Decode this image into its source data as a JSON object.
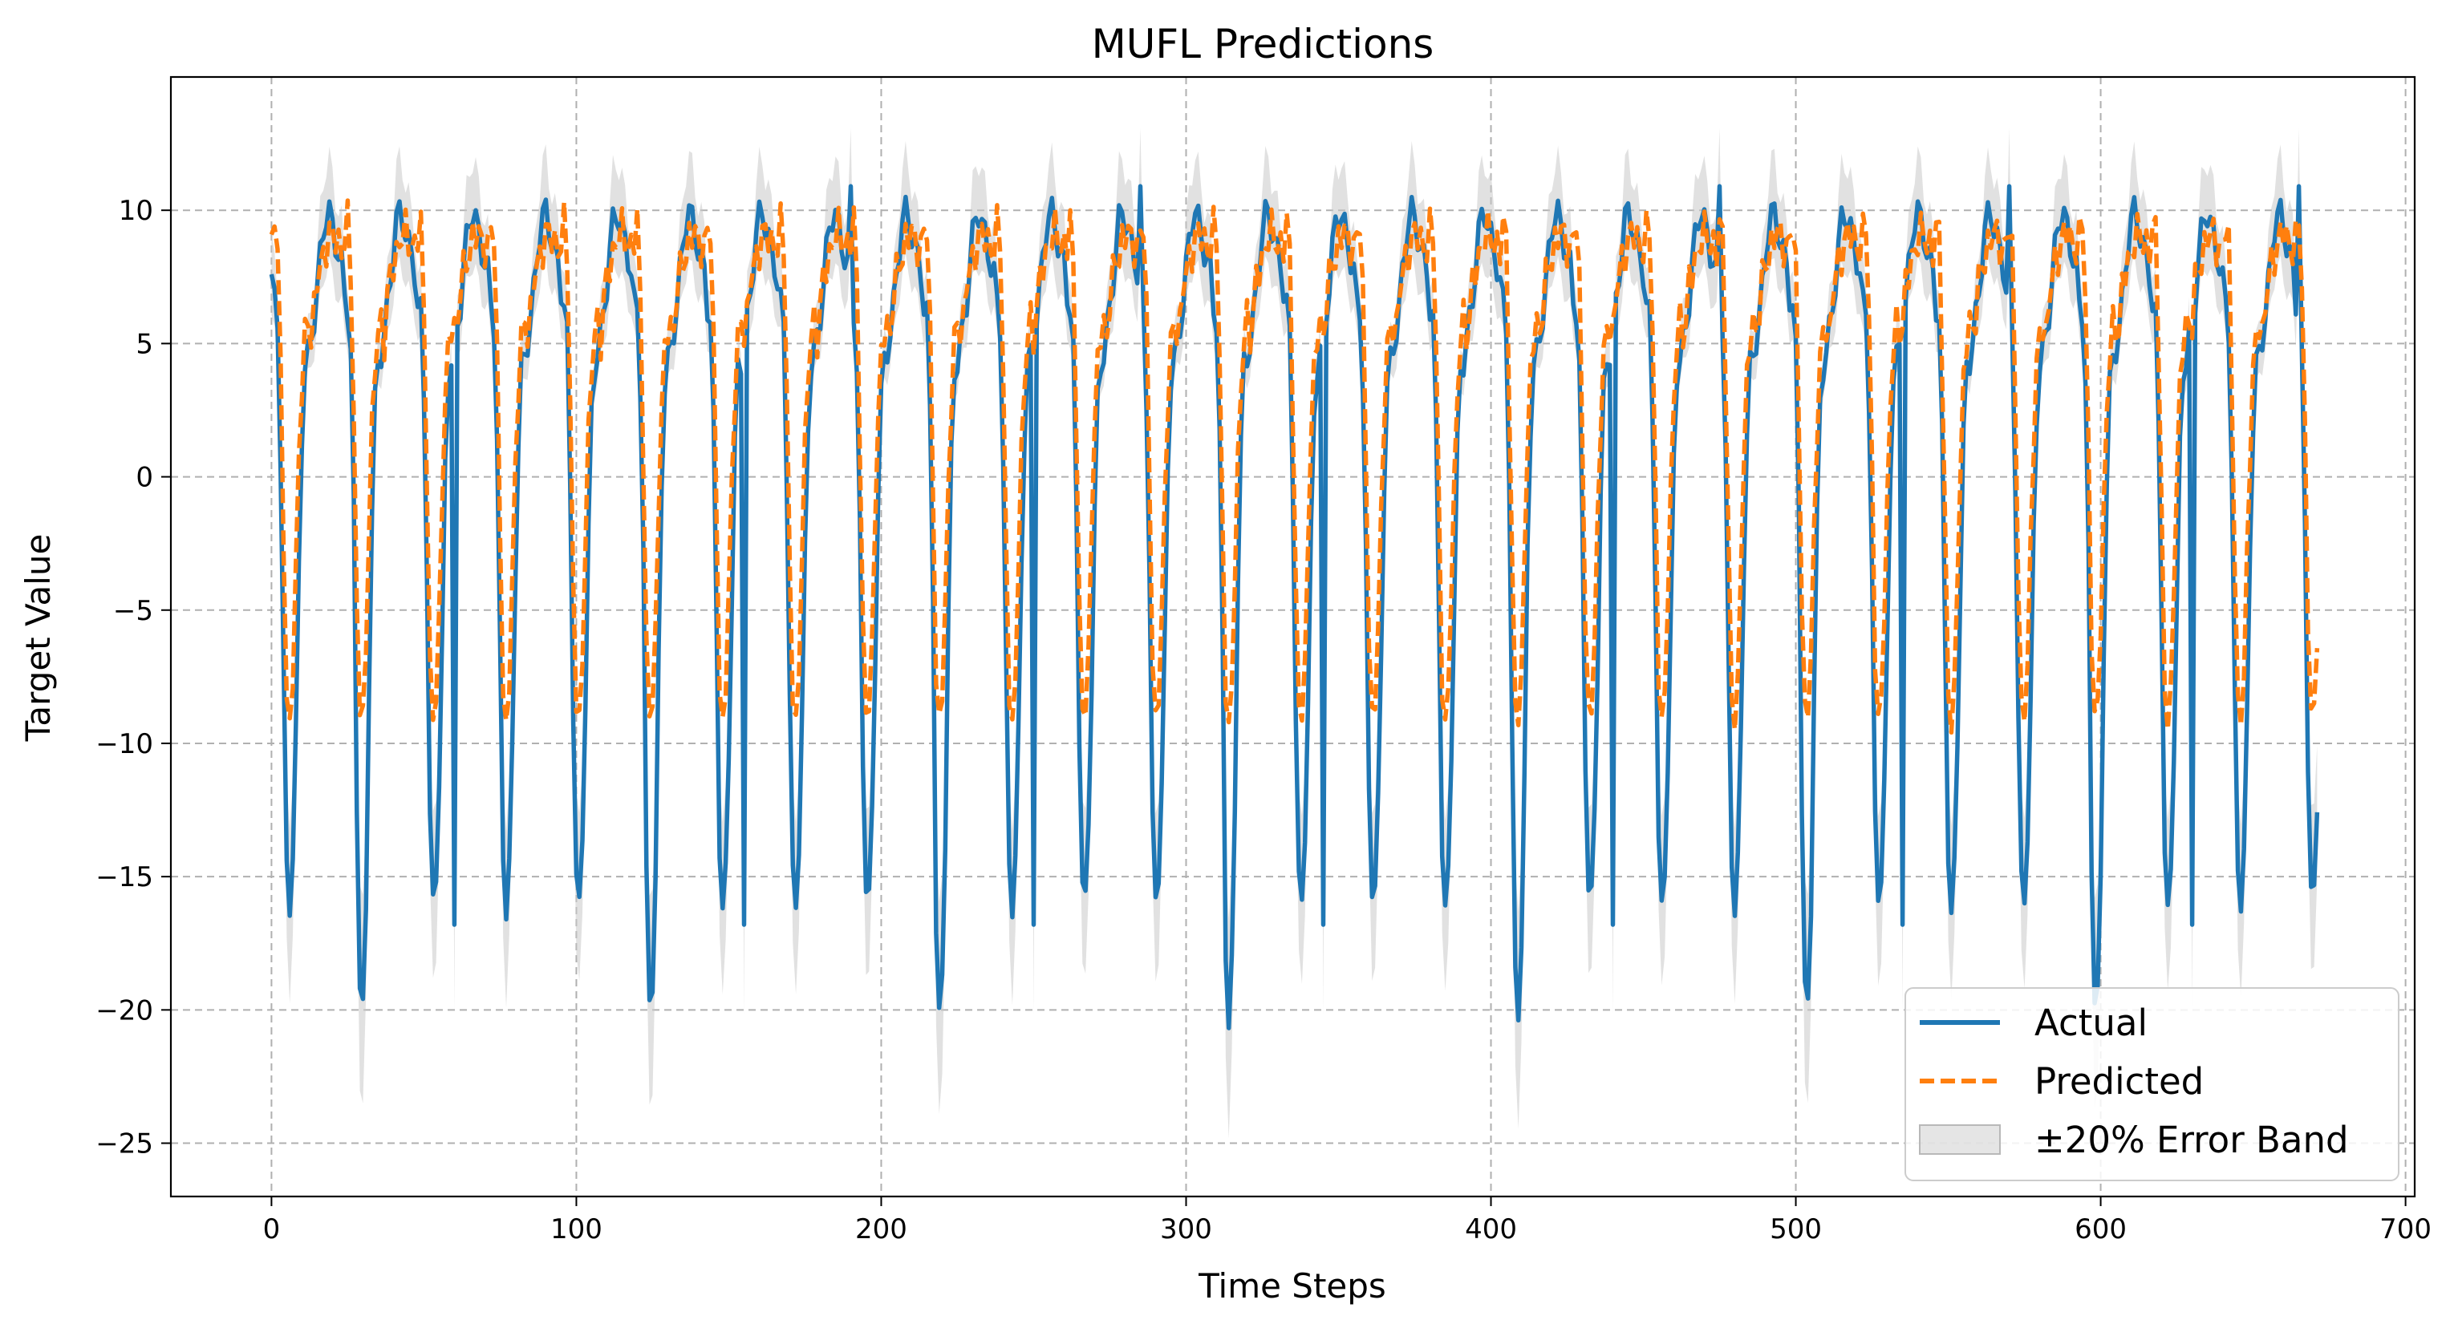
{
  "chart_data": {
    "type": "line",
    "title": "MUFL Predictions",
    "xlabel": "Time Steps",
    "ylabel": "Target Value",
    "xlim": [
      -33,
      703
    ],
    "ylim": [
      -27,
      15
    ],
    "x_ticks": [
      0,
      100,
      200,
      300,
      400,
      500,
      600,
      700
    ],
    "y_ticks": [
      10,
      5,
      0,
      -5,
      -10,
      -15,
      -20,
      -25
    ],
    "x_tick_labels": [
      "0",
      "100",
      "200",
      "300",
      "400",
      "500",
      "600",
      "700"
    ],
    "y_tick_labels": [
      "10",
      "5",
      "0",
      "−5",
      "−10",
      "−15",
      "−20",
      "−25"
    ],
    "grid": true,
    "legend_position": "lower-right",
    "n_points": 672,
    "period_steps": 23.7,
    "cycle_shape_actual": [
      [
        0.0,
        7.6
      ],
      [
        0.02,
        6.4
      ],
      [
        0.05,
        6.5
      ],
      [
        0.09,
        5.6
      ],
      [
        0.14,
        -1.0
      ],
      [
        0.2,
        -14.0
      ],
      [
        0.25,
        -16.5
      ],
      [
        0.3,
        -14.0
      ],
      [
        0.35,
        -8.0
      ],
      [
        0.4,
        0.0
      ],
      [
        0.45,
        4.0
      ],
      [
        0.5,
        4.4
      ],
      [
        0.56,
        5.4
      ],
      [
        0.62,
        6.6
      ],
      [
        0.68,
        8.4
      ],
      [
        0.73,
        9.6
      ],
      [
        0.79,
        10.0
      ],
      [
        0.85,
        9.3
      ],
      [
        0.92,
        8.4
      ],
      [
        1.0,
        7.6
      ]
    ],
    "cycle_shape_predicted": [
      [
        0.0,
        8.5
      ],
      [
        0.03,
        9.3
      ],
      [
        0.06,
        9.8
      ],
      [
        0.09,
        8.8
      ],
      [
        0.14,
        2.0
      ],
      [
        0.2,
        -8.0
      ],
      [
        0.25,
        -9.4
      ],
      [
        0.3,
        -7.5
      ],
      [
        0.35,
        -2.0
      ],
      [
        0.4,
        2.5
      ],
      [
        0.45,
        5.0
      ],
      [
        0.5,
        6.0
      ],
      [
        0.56,
        5.0
      ],
      [
        0.62,
        7.4
      ],
      [
        0.68,
        8.0
      ],
      [
        0.73,
        8.2
      ],
      [
        0.79,
        9.0
      ],
      [
        0.85,
        9.4
      ],
      [
        0.92,
        8.6
      ],
      [
        1.0,
        8.5
      ]
    ],
    "deep_trough_cycles": [
      1,
      5,
      9,
      13,
      17,
      21,
      25
    ],
    "deep_trough_min": -20.7,
    "spike_samples": [
      {
        "x": 60,
        "y": -16.8
      },
      {
        "x": 155,
        "y": -16.8
      },
      {
        "x": 250,
        "y": -16.8
      },
      {
        "x": 345,
        "y": -16.8
      },
      {
        "x": 440,
        "y": -16.8
      },
      {
        "x": 535,
        "y": -16.8
      },
      {
        "x": 630,
        "y": -16.8
      },
      {
        "x": 190,
        "y": 10.9
      },
      {
        "x": 285,
        "y": 10.9
      },
      {
        "x": 475,
        "y": 10.9
      },
      {
        "x": 570,
        "y": 10.9
      },
      {
        "x": 665,
        "y": 10.9
      }
    ],
    "error_band_fraction": 0.2,
    "series": [
      {
        "name": "Actual",
        "color": "#1f77b4",
        "style": "solid"
      },
      {
        "name": "Predicted",
        "color": "#ff7f0e",
        "style": "dashed"
      },
      {
        "name": "±20% Error Band",
        "color": "#c8c8c8",
        "style": "band"
      }
    ]
  }
}
